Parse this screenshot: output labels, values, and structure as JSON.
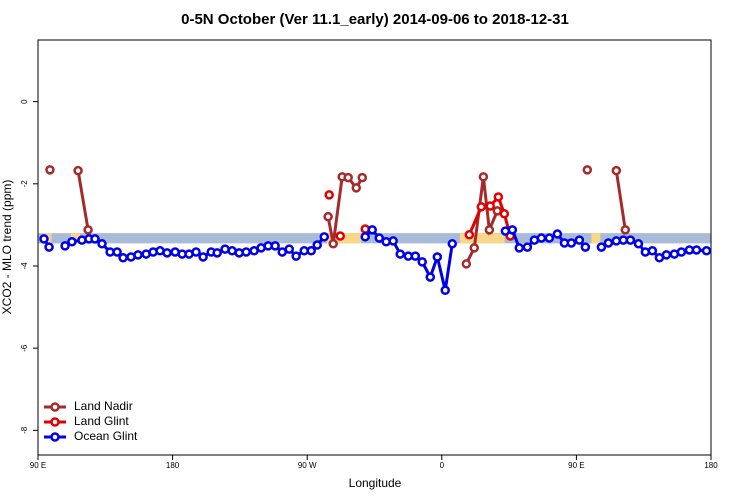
{
  "chart_data": {
    "type": "line",
    "title": "0-5N October (Ver 11.1_early)   2014-09-06 to 2018-12-31",
    "x_label": "Longitude",
    "y_label": "XCO2 - MLO trend (ppm)",
    "xlim": [
      90,
      540
    ],
    "ylim": [
      -8.6,
      1.5
    ],
    "xticks": [
      {
        "value": 90,
        "label": "90 E"
      },
      180,
      {
        "value": 270,
        "label": "90 W"
      },
      {
        "value": 360,
        "label": "0"
      },
      {
        "value": 450,
        "label": "90 E"
      },
      {
        "value": 540,
        "label": "180"
      }
    ],
    "yticks": [
      0,
      -2,
      -4,
      -6,
      -8
    ],
    "legend": "bottom-left",
    "band": {
      "range": [
        -3.45,
        -3.2
      ],
      "color": "#a8bcd9",
      "highlight_color": "#f8d68a",
      "highlights": [
        [
          93,
          99
        ],
        [
          112,
          118
        ],
        [
          283,
          306
        ],
        [
          372,
          402
        ],
        [
          460,
          466
        ]
      ]
    },
    "series": [
      {
        "name": "Land Nadir",
        "color": "#a52a2a",
        "x": [
          98.0,
          null,
          116.8,
          123.5,
          null,
          284.0,
          287.4,
          293.4,
          297.4,
          302.8,
          306.8,
          null,
          376.4,
          381.7,
          387.8,
          391.8,
          397.1,
          null,
          457.3,
          null,
          476.7,
          482.7
        ],
        "values": [
          -1.66,
          null,
          -1.68,
          -3.12,
          null,
          -2.8,
          -3.46,
          -1.83,
          -1.85,
          -2.1,
          -1.85,
          null,
          -3.95,
          -3.56,
          -1.83,
          -3.12,
          -2.66,
          null,
          -1.66,
          null,
          -1.68,
          -3.12
        ]
      },
      {
        "name": "Land Glint",
        "color": "#e00000",
        "x": [
          284.7,
          null,
          292.1,
          null,
          308.8,
          null,
          378.4,
          386.4,
          392.4,
          397.8,
          401.8,
          405.8
        ],
        "values": [
          -2.27,
          null,
          -3.27,
          null,
          -3.1,
          null,
          -3.24,
          -2.56,
          -2.54,
          -2.32,
          -2.73,
          -3.27
        ]
      },
      {
        "name": "Ocean Glint",
        "color": "#0000e6",
        "x": [
          94.0,
          97.4,
          null,
          108.1,
          112.7,
          119.4,
          124.1,
          128.1,
          132.8,
          138.2,
          142.9,
          146.9,
          152.2,
          156.9,
          162.3,
          167.0,
          171.6,
          176.3,
          181.7,
          186.4,
          191.0,
          195.7,
          200.4,
          205.8,
          209.8,
          215.1,
          219.8,
          224.5,
          229.2,
          234.5,
          239.2,
          243.9,
          248.6,
          253.3,
          258.0,
          262.6,
          268.0,
          272.7,
          276.7,
          281.4,
          null,
          308.8,
          313.5,
          318.2,
          322.8,
          327.5,
          332.2,
          337.6,
          342.3,
          346.9,
          352.3,
          357.0,
          362.3,
          367.0,
          null,
          402.5,
          407.2,
          411.8,
          417.2,
          421.9,
          426.6,
          431.9,
          437.3,
          442.0,
          446.6,
          452.0,
          456.0,
          null,
          466.7,
          471.4,
          476.7,
          481.4,
          486.1,
          491.5,
          496.1,
          500.8,
          505.5,
          510.2,
          515.5,
          520.2,
          525.6,
          530.3,
          537.0
        ],
        "values": [
          -3.34,
          -3.54,
          null,
          -3.51,
          -3.41,
          -3.37,
          -3.34,
          -3.34,
          -3.46,
          -3.66,
          -3.66,
          -3.8,
          -3.78,
          -3.73,
          -3.71,
          -3.66,
          -3.63,
          -3.68,
          -3.66,
          -3.71,
          -3.71,
          -3.66,
          -3.78,
          -3.66,
          -3.68,
          -3.59,
          -3.63,
          -3.68,
          -3.66,
          -3.63,
          -3.56,
          -3.51,
          -3.51,
          -3.66,
          -3.59,
          -3.76,
          -3.63,
          -3.63,
          -3.49,
          -3.29,
          null,
          -3.29,
          -3.12,
          -3.32,
          -3.41,
          -3.39,
          -3.71,
          -3.76,
          -3.76,
          -3.9,
          -4.27,
          -3.78,
          -4.59,
          -3.46,
          null,
          -3.15,
          -3.12,
          -3.56,
          -3.54,
          -3.37,
          -3.32,
          -3.32,
          -3.22,
          -3.44,
          -3.44,
          -3.37,
          -3.54,
          null,
          -3.54,
          -3.44,
          -3.39,
          -3.37,
          -3.37,
          -3.46,
          -3.66,
          -3.63,
          -3.8,
          -3.73,
          -3.71,
          -3.66,
          -3.61,
          -3.61,
          -3.63
        ]
      }
    ]
  }
}
